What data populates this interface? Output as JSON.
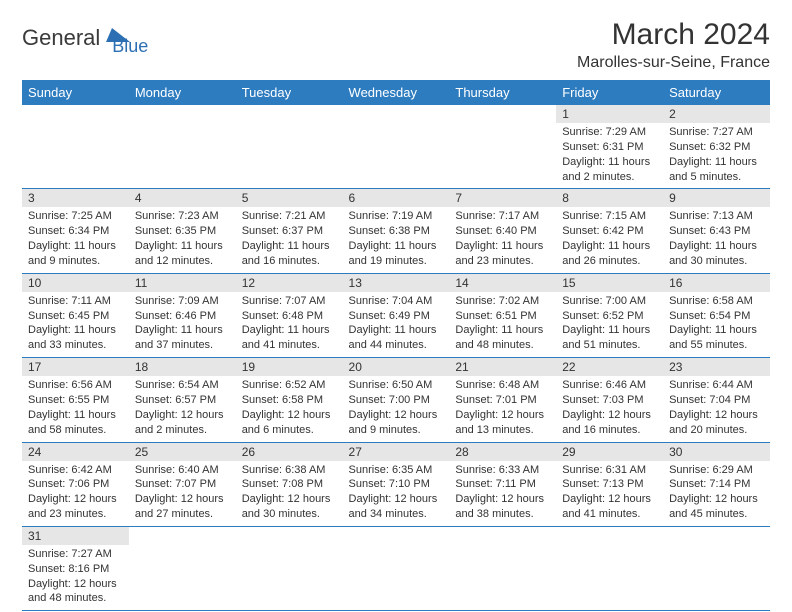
{
  "logo": {
    "text1": "General",
    "text2": "Blue"
  },
  "title": "March 2024",
  "location": "Marolles-sur-Seine, France",
  "colors": {
    "header_bg": "#2d7cc0",
    "header_fg": "#ffffff",
    "daynum_bg": "#e6e6e6",
    "border": "#2d7cc0",
    "text": "#333333",
    "logo_blue": "#2d6fb3"
  },
  "typography": {
    "month_fontsize": 30,
    "location_fontsize": 16,
    "dow_fontsize": 13,
    "daynum_fontsize": 12,
    "detail_fontsize": 11
  },
  "dows": [
    "Sunday",
    "Monday",
    "Tuesday",
    "Wednesday",
    "Thursday",
    "Friday",
    "Saturday"
  ],
  "weeks": [
    [
      null,
      null,
      null,
      null,
      null,
      {
        "n": "1",
        "sr": "Sunrise: 7:29 AM",
        "ss": "Sunset: 6:31 PM",
        "dl": "Daylight: 11 hours and 2 minutes."
      },
      {
        "n": "2",
        "sr": "Sunrise: 7:27 AM",
        "ss": "Sunset: 6:32 PM",
        "dl": "Daylight: 11 hours and 5 minutes."
      }
    ],
    [
      {
        "n": "3",
        "sr": "Sunrise: 7:25 AM",
        "ss": "Sunset: 6:34 PM",
        "dl": "Daylight: 11 hours and 9 minutes."
      },
      {
        "n": "4",
        "sr": "Sunrise: 7:23 AM",
        "ss": "Sunset: 6:35 PM",
        "dl": "Daylight: 11 hours and 12 minutes."
      },
      {
        "n": "5",
        "sr": "Sunrise: 7:21 AM",
        "ss": "Sunset: 6:37 PM",
        "dl": "Daylight: 11 hours and 16 minutes."
      },
      {
        "n": "6",
        "sr": "Sunrise: 7:19 AM",
        "ss": "Sunset: 6:38 PM",
        "dl": "Daylight: 11 hours and 19 minutes."
      },
      {
        "n": "7",
        "sr": "Sunrise: 7:17 AM",
        "ss": "Sunset: 6:40 PM",
        "dl": "Daylight: 11 hours and 23 minutes."
      },
      {
        "n": "8",
        "sr": "Sunrise: 7:15 AM",
        "ss": "Sunset: 6:42 PM",
        "dl": "Daylight: 11 hours and 26 minutes."
      },
      {
        "n": "9",
        "sr": "Sunrise: 7:13 AM",
        "ss": "Sunset: 6:43 PM",
        "dl": "Daylight: 11 hours and 30 minutes."
      }
    ],
    [
      {
        "n": "10",
        "sr": "Sunrise: 7:11 AM",
        "ss": "Sunset: 6:45 PM",
        "dl": "Daylight: 11 hours and 33 minutes."
      },
      {
        "n": "11",
        "sr": "Sunrise: 7:09 AM",
        "ss": "Sunset: 6:46 PM",
        "dl": "Daylight: 11 hours and 37 minutes."
      },
      {
        "n": "12",
        "sr": "Sunrise: 7:07 AM",
        "ss": "Sunset: 6:48 PM",
        "dl": "Daylight: 11 hours and 41 minutes."
      },
      {
        "n": "13",
        "sr": "Sunrise: 7:04 AM",
        "ss": "Sunset: 6:49 PM",
        "dl": "Daylight: 11 hours and 44 minutes."
      },
      {
        "n": "14",
        "sr": "Sunrise: 7:02 AM",
        "ss": "Sunset: 6:51 PM",
        "dl": "Daylight: 11 hours and 48 minutes."
      },
      {
        "n": "15",
        "sr": "Sunrise: 7:00 AM",
        "ss": "Sunset: 6:52 PM",
        "dl": "Daylight: 11 hours and 51 minutes."
      },
      {
        "n": "16",
        "sr": "Sunrise: 6:58 AM",
        "ss": "Sunset: 6:54 PM",
        "dl": "Daylight: 11 hours and 55 minutes."
      }
    ],
    [
      {
        "n": "17",
        "sr": "Sunrise: 6:56 AM",
        "ss": "Sunset: 6:55 PM",
        "dl": "Daylight: 11 hours and 58 minutes."
      },
      {
        "n": "18",
        "sr": "Sunrise: 6:54 AM",
        "ss": "Sunset: 6:57 PM",
        "dl": "Daylight: 12 hours and 2 minutes."
      },
      {
        "n": "19",
        "sr": "Sunrise: 6:52 AM",
        "ss": "Sunset: 6:58 PM",
        "dl": "Daylight: 12 hours and 6 minutes."
      },
      {
        "n": "20",
        "sr": "Sunrise: 6:50 AM",
        "ss": "Sunset: 7:00 PM",
        "dl": "Daylight: 12 hours and 9 minutes."
      },
      {
        "n": "21",
        "sr": "Sunrise: 6:48 AM",
        "ss": "Sunset: 7:01 PM",
        "dl": "Daylight: 12 hours and 13 minutes."
      },
      {
        "n": "22",
        "sr": "Sunrise: 6:46 AM",
        "ss": "Sunset: 7:03 PM",
        "dl": "Daylight: 12 hours and 16 minutes."
      },
      {
        "n": "23",
        "sr": "Sunrise: 6:44 AM",
        "ss": "Sunset: 7:04 PM",
        "dl": "Daylight: 12 hours and 20 minutes."
      }
    ],
    [
      {
        "n": "24",
        "sr": "Sunrise: 6:42 AM",
        "ss": "Sunset: 7:06 PM",
        "dl": "Daylight: 12 hours and 23 minutes."
      },
      {
        "n": "25",
        "sr": "Sunrise: 6:40 AM",
        "ss": "Sunset: 7:07 PM",
        "dl": "Daylight: 12 hours and 27 minutes."
      },
      {
        "n": "26",
        "sr": "Sunrise: 6:38 AM",
        "ss": "Sunset: 7:08 PM",
        "dl": "Daylight: 12 hours and 30 minutes."
      },
      {
        "n": "27",
        "sr": "Sunrise: 6:35 AM",
        "ss": "Sunset: 7:10 PM",
        "dl": "Daylight: 12 hours and 34 minutes."
      },
      {
        "n": "28",
        "sr": "Sunrise: 6:33 AM",
        "ss": "Sunset: 7:11 PM",
        "dl": "Daylight: 12 hours and 38 minutes."
      },
      {
        "n": "29",
        "sr": "Sunrise: 6:31 AM",
        "ss": "Sunset: 7:13 PM",
        "dl": "Daylight: 12 hours and 41 minutes."
      },
      {
        "n": "30",
        "sr": "Sunrise: 6:29 AM",
        "ss": "Sunset: 7:14 PM",
        "dl": "Daylight: 12 hours and 45 minutes."
      }
    ],
    [
      {
        "n": "31",
        "sr": "Sunrise: 7:27 AM",
        "ss": "Sunset: 8:16 PM",
        "dl": "Daylight: 12 hours and 48 minutes."
      },
      null,
      null,
      null,
      null,
      null,
      null
    ]
  ]
}
